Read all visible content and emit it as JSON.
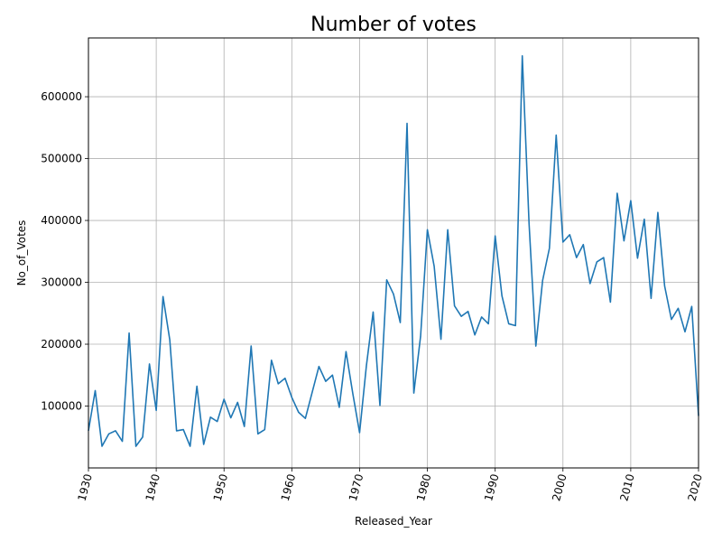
{
  "chart_data": {
    "type": "line",
    "title": "Number of votes",
    "xlabel": "Released_Year",
    "ylabel": "No_of_Votes",
    "xlim": [
      1930,
      2020
    ],
    "ylim": [
      0,
      695000
    ],
    "grid": true,
    "color": "#1f77b4",
    "x_ticks": [
      1930,
      1940,
      1950,
      1960,
      1970,
      1980,
      1990,
      2000,
      2010,
      2020
    ],
    "y_ticks": [
      100000,
      200000,
      300000,
      400000,
      500000,
      600000
    ],
    "series": [
      {
        "x": [
          1930,
          1931,
          1932,
          1933,
          1934,
          1935,
          1936,
          1937,
          1938,
          1939,
          1940,
          1941,
          1942,
          1943,
          1944,
          1945,
          1946,
          1947,
          1948,
          1949,
          1950,
          1951,
          1952,
          1953,
          1954,
          1955,
          1956,
          1957,
          1958,
          1959,
          1960,
          1961,
          1962,
          1963,
          1964,
          1965,
          1966,
          1967,
          1968,
          1969,
          1970,
          1971,
          1972,
          1973,
          1974,
          1975,
          1976,
          1977,
          1978,
          1979,
          1980,
          1981,
          1982,
          1983,
          1984,
          1985,
          1986,
          1987,
          1988,
          1989,
          1990,
          1991,
          1992,
          1993,
          1994,
          1995,
          1996,
          1997,
          1998,
          1999,
          2000,
          2001,
          2002,
          2003,
          2004,
          2005,
          2006,
          2007,
          2008,
          2009,
          2010,
          2011,
          2012,
          2013,
          2014,
          2015,
          2016,
          2017,
          2018,
          2019,
          2020
        ],
        "y": [
          60000,
          125000,
          35000,
          55000,
          60000,
          43000,
          218000,
          35000,
          50000,
          168000,
          93000,
          277000,
          207000,
          60000,
          62000,
          35000,
          132000,
          38000,
          82000,
          75000,
          111000,
          81000,
          106000,
          67000,
          197000,
          55000,
          62000,
          174000,
          136000,
          145000,
          114000,
          90000,
          80000,
          122000,
          164000,
          140000,
          150000,
          98000,
          188000,
          120000,
          57000,
          165000,
          252000,
          101000,
          304000,
          281000,
          235000,
          557000,
          121000,
          213000,
          385000,
          326000,
          208000,
          385000,
          262000,
          245000,
          253000,
          215000,
          244000,
          233000,
          375000,
          278000,
          233000,
          230000,
          666000,
          395000,
          197000,
          303000,
          355000,
          538000,
          365000,
          377000,
          340000,
          361000,
          298000,
          333000,
          340000,
          268000,
          444000,
          367000,
          432000,
          339000,
          402000,
          274000,
          413000,
          294000,
          240000,
          258000,
          220000,
          261000,
          84000
        ]
      }
    ]
  }
}
